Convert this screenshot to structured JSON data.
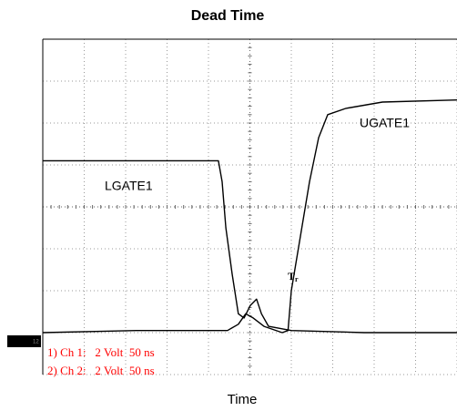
{
  "chart_data": {
    "type": "line",
    "title": "Dead Time",
    "x_label": "Time",
    "xlim": [
      0,
      500
    ],
    "ylim": [
      -2,
      14
    ],
    "grid": true,
    "ground_marker": "12",
    "channel_labels": [
      "1) Ch 1:   2 Volt  50 ns",
      "2) Ch 2:   2 Volt  50 ns"
    ],
    "channel_color": "#ff0000",
    "series": [
      {
        "name": "LGATE1",
        "color": "#000000",
        "x": [
          0,
          58,
          168,
          212,
          216.5,
          221,
          228.6,
          236,
          243,
          250.5,
          258,
          264,
          272.5,
          300,
          388,
          500
        ],
        "values": [
          8.2,
          8.2,
          8.2,
          8.2,
          7.2,
          5.0,
          2.8,
          0.9,
          0.7,
          1.3,
          1.6,
          0.9,
          0.3,
          0.1,
          0.0,
          0.0
        ]
      },
      {
        "name": "UGATE1",
        "color": "#000000",
        "x": [
          0,
          113,
          223,
          236,
          245,
          254,
          267,
          289,
          296,
          300,
          311,
          322,
          333,
          344,
          366,
          410,
          500
        ],
        "values": [
          0,
          0.1,
          0.1,
          0.4,
          0.9,
          0.7,
          0.3,
          0,
          0.1,
          2.0,
          4.6,
          7.2,
          9.3,
          10.4,
          10.7,
          11.0,
          11.1
        ]
      }
    ],
    "annotations": [
      {
        "text": "T",
        "sub": "r"
      }
    ]
  }
}
